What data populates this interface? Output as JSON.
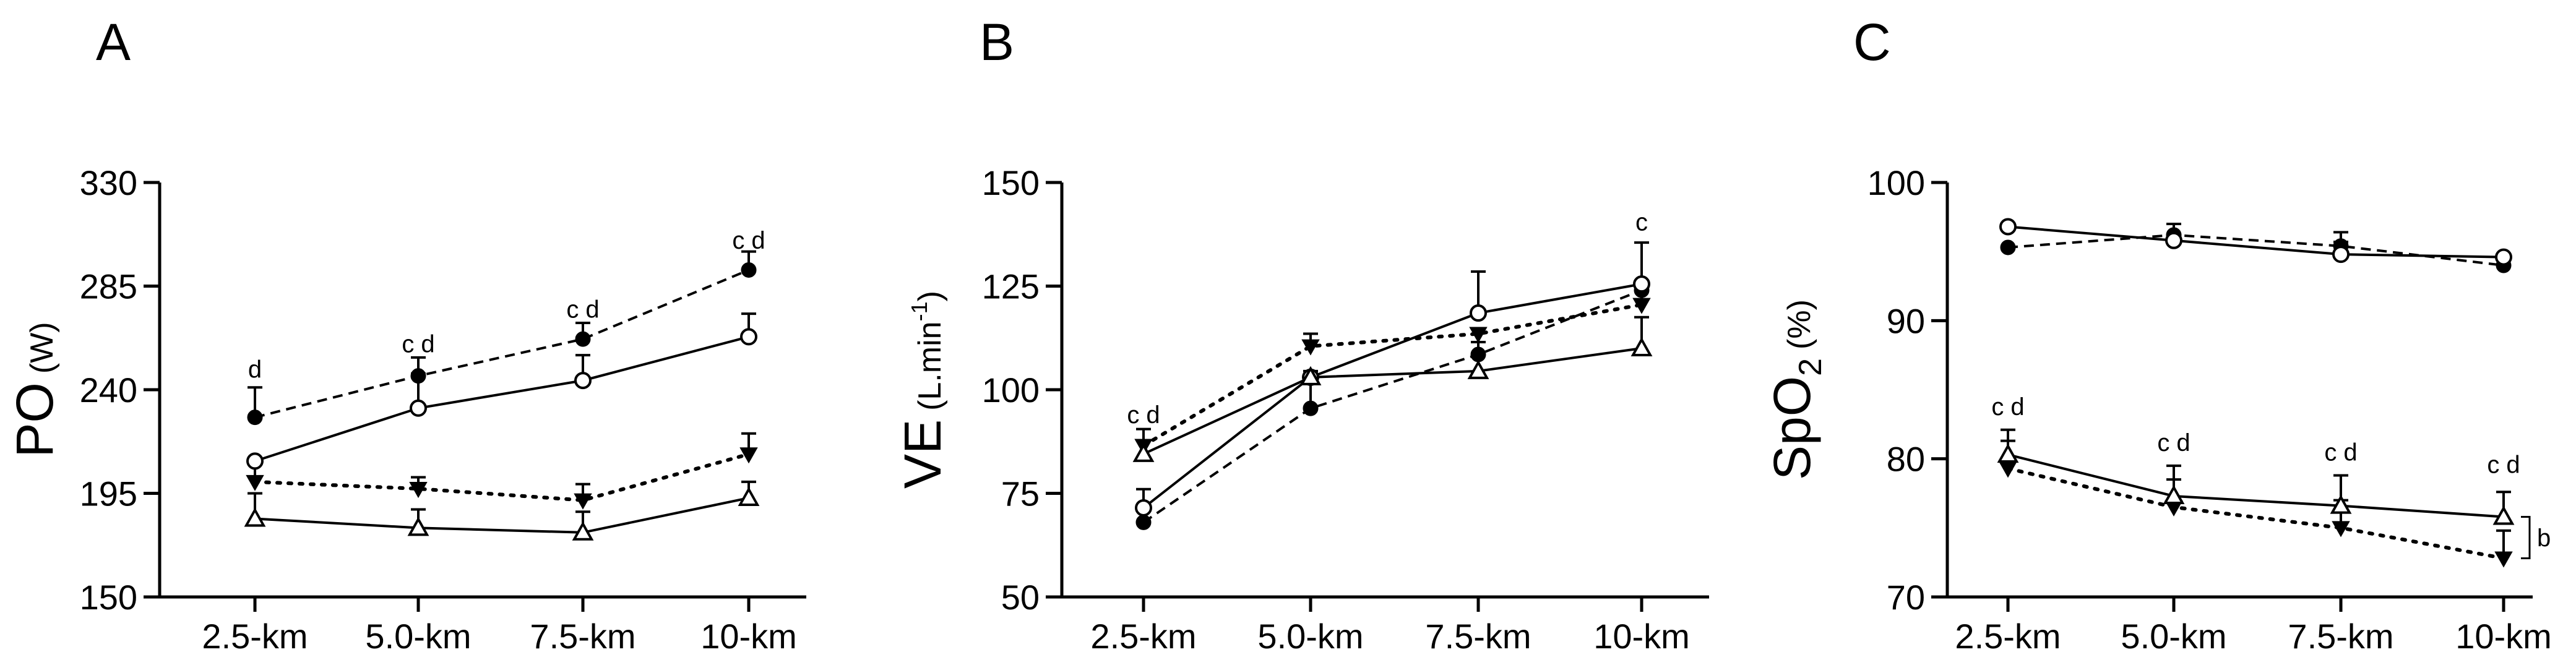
{
  "chart_data": [
    {
      "type": "line",
      "panel": "A",
      "ylabel": "PO",
      "ylabel_unit": "(W)",
      "categories": [
        "2.5-km",
        "5.0-km",
        "7.5-km",
        "10-km"
      ],
      "ylim": [
        150,
        330
      ],
      "yticks": [
        150,
        195,
        240,
        285,
        330
      ],
      "series": [
        {
          "marker": "filled-circle",
          "line": "dashed",
          "values": [
            228,
            246,
            262,
            292
          ],
          "errors": [
            13,
            8,
            7,
            8
          ]
        },
        {
          "marker": "open-circle",
          "line": "solid",
          "values": [
            209,
            232,
            244,
            263
          ],
          "errors": [
            0,
            15,
            11,
            10
          ]
        },
        {
          "marker": "filled-triangle-down",
          "line": "dotted",
          "values": [
            200,
            197,
            192,
            212
          ],
          "errors": [
            8,
            5,
            7,
            9
          ]
        },
        {
          "marker": "open-triangle-up",
          "line": "solid",
          "values": [
            184,
            180,
            178,
            193
          ],
          "errors": [
            11,
            8,
            9,
            7
          ]
        }
      ],
      "annotations": [
        {
          "category": "2.5-km",
          "y": 249,
          "text": "d"
        },
        {
          "category": "5.0-km",
          "y": 260,
          "text": "c d"
        },
        {
          "category": "7.5-km",
          "y": 275,
          "text": "c d"
        },
        {
          "category": "10-km",
          "y": 305,
          "text": "c d"
        }
      ]
    },
    {
      "type": "line",
      "panel": "B",
      "ylabel": "VE",
      "ylabel_unit": "(L.min",
      "ylabel_unit_sup": "-1",
      "ylabel_unit_close": ")",
      "categories": [
        "2.5-km",
        "5.0-km",
        "7.5-km",
        "10-km"
      ],
      "ylim": [
        50,
        150
      ],
      "yticks": [
        50,
        75,
        100,
        125,
        150
      ],
      "series": [
        {
          "marker": "filled-circle",
          "line": "dashed",
          "values": [
            68,
            95.5,
            108.5,
            124
          ],
          "errors": [
            8,
            9,
            0,
            0
          ]
        },
        {
          "marker": "open-circle",
          "line": "solid",
          "values": [
            71.5,
            103,
            118.5,
            125.5
          ],
          "errors": [
            0,
            0,
            10,
            10
          ]
        },
        {
          "marker": "filled-triangle-down",
          "line": "dotted",
          "values": [
            86.5,
            110.5,
            113.5,
            120.5
          ],
          "errors": [
            0,
            3,
            0,
            4
          ]
        },
        {
          "marker": "open-triangle-up",
          "line": "solid",
          "values": [
            84.5,
            103,
            104.5,
            110
          ],
          "errors": [
            6,
            0,
            7,
            7.5
          ]
        }
      ],
      "annotations": [
        {
          "category": "2.5-km",
          "y": 94,
          "text": "c d"
        },
        {
          "category": "10-km",
          "y": 140.5,
          "text": "c"
        }
      ]
    },
    {
      "type": "line",
      "panel": "C",
      "ylabel": "SpO",
      "ylabel_sub": "2",
      "ylabel_unit": "(%)",
      "categories": [
        "2.5-km",
        "5.0-km",
        "7.5-km",
        "10-km"
      ],
      "ylim": [
        70,
        100
      ],
      "yticks": [
        70,
        80,
        90,
        100
      ],
      "series": [
        {
          "marker": "filled-circle",
          "line": "dashed",
          "values": [
            95.3,
            96.2,
            95.4,
            94
          ],
          "errors": [
            0,
            0.8,
            1,
            0
          ]
        },
        {
          "marker": "open-circle",
          "line": "solid",
          "values": [
            96.8,
            95.8,
            94.8,
            94.6
          ],
          "errors": [
            0,
            0,
            0.9,
            0
          ]
        },
        {
          "marker": "filled-triangle-down",
          "line": "dotted",
          "values": [
            79.3,
            76.5,
            75,
            72.8
          ],
          "errors": [
            2,
            2,
            2,
            2
          ]
        },
        {
          "marker": "open-triangle-up",
          "line": "solid",
          "values": [
            80.3,
            77.3,
            76.6,
            75.8
          ],
          "errors": [
            1.8,
            2.2,
            2.2,
            1.8
          ]
        }
      ],
      "annotations": [
        {
          "category": "2.5-km",
          "y": 83.8,
          "text": "c d"
        },
        {
          "category": "5.0-km",
          "y": 81.2,
          "text": "c d"
        },
        {
          "category": "7.5-km",
          "y": 80.5,
          "text": "c d"
        },
        {
          "category": "10-km",
          "y": 79.6,
          "text": "c d"
        }
      ],
      "bracket": {
        "text": "b",
        "from": 75.8,
        "to": 72.8
      }
    }
  ]
}
